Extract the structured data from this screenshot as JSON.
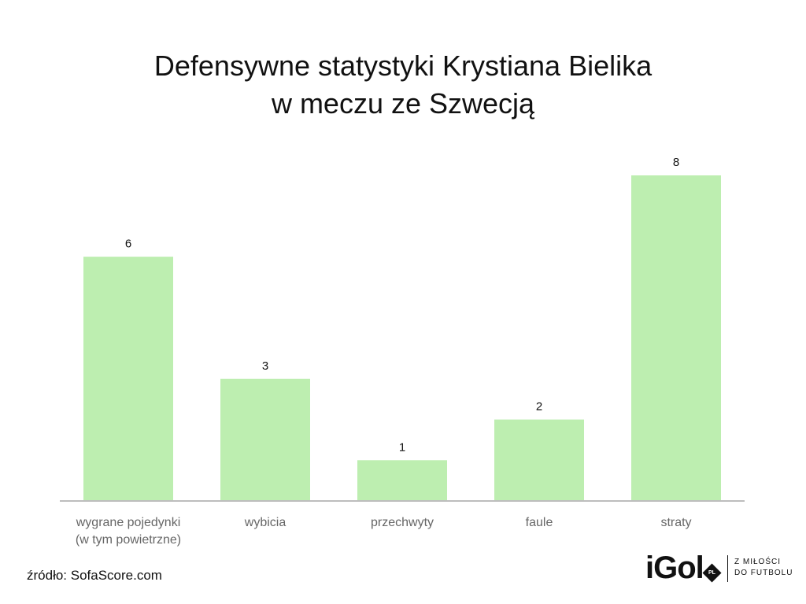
{
  "title": {
    "line1": "Defensywne statystyki Krystiana Bielika",
    "line2": "w meczu ze Szwecją"
  },
  "source": "źródło: SofaScore.com",
  "logo": {
    "word": "iGol",
    "badge": "PL",
    "tagline_line1": "Z MIŁOŚCI",
    "tagline_line2": "DO FUTBOLU"
  },
  "colors": {
    "bar": "#bdeeb0",
    "axis": "#bdbdbd",
    "text": "#111111",
    "category_text": "#666666"
  },
  "chart_data": {
    "type": "bar",
    "title": "Defensywne statystyki Krystiana Bielika w meczu ze Szwecją",
    "categories": [
      [
        "wygrane pojedynki",
        "(w tym powietrzne)"
      ],
      [
        "wybicia"
      ],
      [
        "przechwyty"
      ],
      [
        "faule"
      ],
      [
        "straty"
      ]
    ],
    "values": [
      6,
      3,
      1,
      2,
      8
    ],
    "ylim": [
      0,
      8
    ],
    "grid": false,
    "legend": "none"
  }
}
